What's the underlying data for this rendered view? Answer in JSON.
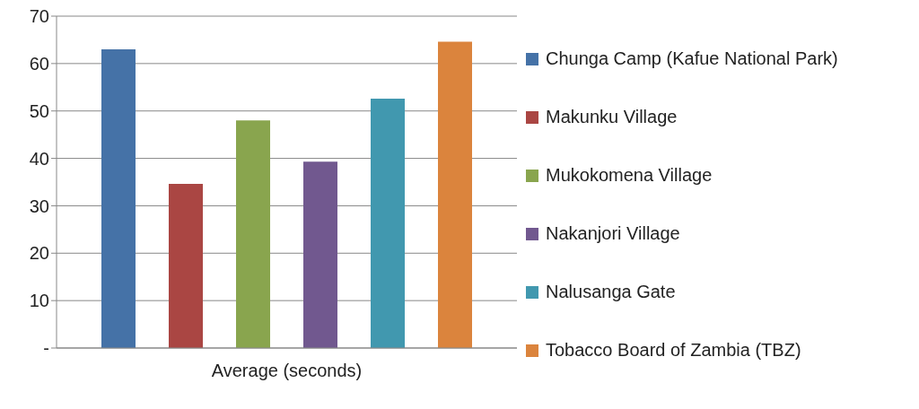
{
  "chart_data": {
    "type": "bar",
    "categories": [
      "Average (seconds)"
    ],
    "series": [
      {
        "name": "Chunga Camp (Kafue National Park)",
        "color": "#4572a7",
        "values": [
          63
        ]
      },
      {
        "name": "Makunku Village",
        "color": "#aa4643",
        "values": [
          34.6
        ]
      },
      {
        "name": "Mukokomena Village",
        "color": "#89a54e",
        "values": [
          48
        ]
      },
      {
        "name": "Nakanjori Village",
        "color": "#71588f",
        "values": [
          39.3
        ]
      },
      {
        "name": "Nalusanga Gate",
        "color": "#4198af",
        "values": [
          52.6
        ]
      },
      {
        "name": "Tobacco Board of Zambia (TBZ)",
        "color": "#db843d",
        "values": [
          64.6
        ]
      }
    ],
    "ylim": [
      0,
      70
    ],
    "yticks": [
      {
        "value": 0,
        "label": "-"
      },
      10,
      20,
      30,
      40,
      50,
      60,
      70
    ],
    "grid": "y",
    "legend": "right"
  }
}
